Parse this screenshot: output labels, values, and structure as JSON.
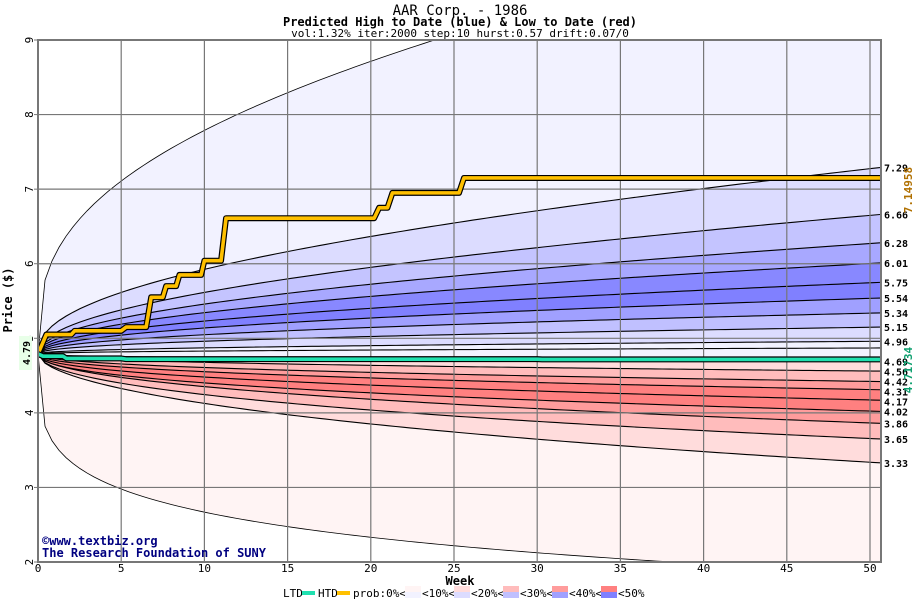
{
  "chart_data": {
    "type": "area",
    "title": "AAR Corp. - 1986",
    "subtitle": "Predicted High to Date (blue) &  Low to Date (red)",
    "params": "vol:1.32% iter:2000 step:10 hurst:0.57 drift:0.07/0",
    "xlabel": "Week",
    "ylabel": "Price ($)",
    "xlim": [
      0,
      50.6
    ],
    "ylim": [
      2,
      9
    ],
    "xticks": [
      0,
      5,
      10,
      15,
      20,
      25,
      30,
      35,
      40,
      45,
      50
    ],
    "yticks": [
      2,
      3,
      4,
      5,
      6,
      7,
      8,
      9
    ],
    "grid": true,
    "start_price": 4.79,
    "start_label": "4.79",
    "quantile_curves": [
      {
        "end": 10.56,
        "shape": 0.3,
        "label": null
      },
      {
        "end": 7.29,
        "shape": 0.42,
        "label": "7.29"
      },
      {
        "end": 6.66,
        "shape": 0.45,
        "label": "6.66"
      },
      {
        "end": 6.28,
        "shape": 0.45,
        "label": "6.28"
      },
      {
        "end": 6.01,
        "shape": 0.45,
        "label": "6.01"
      },
      {
        "end": 5.75,
        "shape": 0.45,
        "label": "5.75"
      },
      {
        "end": 5.54,
        "shape": 0.45,
        "label": "5.54"
      },
      {
        "end": 5.34,
        "shape": 0.45,
        "label": "5.34"
      },
      {
        "end": 5.15,
        "shape": 0.45,
        "label": "5.15"
      },
      {
        "end": 4.96,
        "shape": 0.45,
        "label": "4.96"
      },
      {
        "end": 4.87,
        "shape": 0.45,
        "label": null
      },
      {
        "end": 4.69,
        "shape": 0.45,
        "label": "4.69"
      },
      {
        "end": 4.56,
        "shape": 0.45,
        "label": "4.56"
      },
      {
        "end": 4.42,
        "shape": 0.45,
        "label": "4.42"
      },
      {
        "end": 4.31,
        "shape": 0.45,
        "label": "4.31"
      },
      {
        "end": 4.17,
        "shape": 0.45,
        "label": "4.17"
      },
      {
        "end": 4.02,
        "shape": 0.45,
        "label": "4.02"
      },
      {
        "end": 3.86,
        "shape": 0.5,
        "label": "3.86"
      },
      {
        "end": 3.65,
        "shape": 0.5,
        "label": "3.65"
      },
      {
        "end": 3.33,
        "shape": 0.55,
        "label": "3.33"
      },
      {
        "end": 1.85,
        "shape": 0.3,
        "label": null
      }
    ],
    "band_colors": [
      "#f2f2ff",
      "#dcdcff",
      "#c4c4ff",
      "#a8a8ff",
      "#8888ff",
      "#8080ff",
      "#a0a0ff",
      "#c0c0ff",
      "#dcdcff",
      "#f2f2ff",
      "#f2f2ff",
      "#ffdcdc",
      "#ffbcbc",
      "#ff9c9c",
      "#ff8080",
      "#ff8080",
      "#ff9c9c",
      "#ffbcbc",
      "#ffdcdc",
      "#fff4f4"
    ],
    "series": [
      {
        "name": "HTD",
        "color": "#ffc000",
        "end_label": "7.14958",
        "points": [
          [
            0,
            4.79
          ],
          [
            0.5,
            5.05
          ],
          [
            2,
            5.05
          ],
          [
            2.2,
            5.1
          ],
          [
            5,
            5.1
          ],
          [
            5.3,
            5.15
          ],
          [
            6.5,
            5.15
          ],
          [
            6.8,
            5.55
          ],
          [
            7.5,
            5.55
          ],
          [
            7.7,
            5.7
          ],
          [
            8.3,
            5.7
          ],
          [
            8.5,
            5.85
          ],
          [
            9.8,
            5.85
          ],
          [
            10,
            6.04
          ],
          [
            11,
            6.04
          ],
          [
            11.3,
            6.61
          ],
          [
            20.2,
            6.61
          ],
          [
            20.5,
            6.75
          ],
          [
            21,
            6.75
          ],
          [
            21.3,
            6.95
          ],
          [
            25.3,
            6.95
          ],
          [
            25.6,
            7.15
          ],
          [
            50.6,
            7.15
          ]
        ]
      },
      {
        "name": "LTD",
        "color": "#20e0b0",
        "end_label": "4.71734",
        "points": [
          [
            0,
            4.79
          ],
          [
            0.3,
            4.76
          ],
          [
            1.5,
            4.76
          ],
          [
            1.7,
            4.73
          ],
          [
            5,
            4.73
          ],
          [
            5.3,
            4.72
          ],
          [
            30,
            4.72
          ],
          [
            30.3,
            4.717
          ],
          [
            50.6,
            4.717
          ]
        ]
      }
    ],
    "legend": {
      "ltd": "LTD",
      "htd": "HTD",
      "prob": "prob:0%<",
      "items": [
        {
          "label": "<10%<",
          "top": "#fff4f4",
          "bottom": "#f2f2ff"
        },
        {
          "label": "<20%<",
          "top": "#ffdcdc",
          "bottom": "#dcdcff"
        },
        {
          "label": "<30%<",
          "top": "#ffbcbc",
          "bottom": "#c0c0ff"
        },
        {
          "label": "<40%<",
          "top": "#ff9c9c",
          "bottom": "#a0a0ff"
        },
        {
          "label": "<50%",
          "top": "#ff8080",
          "bottom": "#8080ff"
        }
      ],
      "placement": "bottom"
    }
  },
  "credit": {
    "line1": "©www.textbiz.org",
    "line2": "The Research Foundation of SUNY"
  }
}
